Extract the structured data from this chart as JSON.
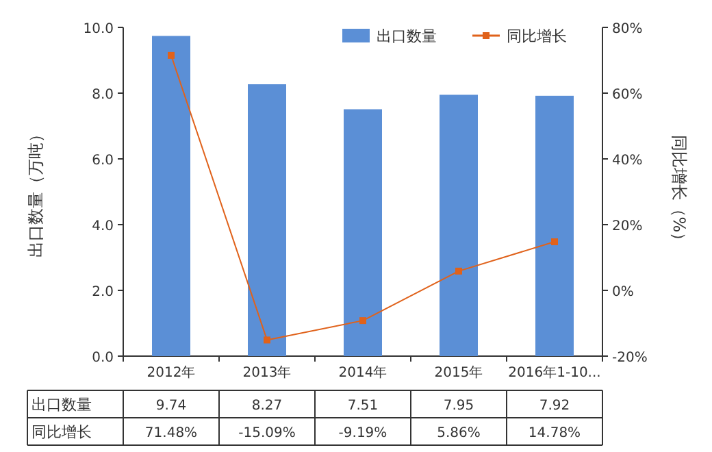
{
  "chart_data": {
    "type": "bar",
    "categories": [
      "2012年",
      "2013年",
      "2014年",
      "2015年",
      "2016年1-10..."
    ],
    "series": [
      {
        "name": "出口数量",
        "color": "#5b8fd6",
        "values": [
          9.74,
          8.27,
          7.51,
          7.95,
          7.92
        ],
        "value_labels": [
          "9.74",
          "8.27",
          "7.51",
          "7.95",
          "7.92"
        ]
      },
      {
        "name": "同比增长",
        "type": "line",
        "axis": "y2",
        "color": "#e0621b",
        "marker": "square",
        "values": [
          71.48,
          -15.09,
          -9.19,
          5.86,
          14.78
        ],
        "value_labels": [
          "71.48%",
          "-15.09%",
          "-9.19%",
          "5.86%",
          "14.78%"
        ]
      }
    ],
    "ylabel": "出口数量（万吨）",
    "y2label": "同比增长（%）",
    "ylim": [
      0,
      10
    ],
    "yticks": [
      {
        "value": 0,
        "label": "0.0"
      },
      {
        "value": 2,
        "label": "2.0"
      },
      {
        "value": 4,
        "label": "4.0"
      },
      {
        "value": 6,
        "label": "6.0"
      },
      {
        "value": 8,
        "label": "8.0"
      },
      {
        "value": 10,
        "label": "10.0"
      }
    ],
    "y2lim": [
      -20,
      80
    ],
    "y2ticks": [
      {
        "value": -20,
        "label": "-20%"
      },
      {
        "value": 0,
        "label": "0%"
      },
      {
        "value": 20,
        "label": "20%"
      },
      {
        "value": 40,
        "label": "40%"
      },
      {
        "value": 60,
        "label": "60%"
      },
      {
        "value": 80,
        "label": "80%"
      }
    ],
    "legend": "top right",
    "grid": false
  }
}
